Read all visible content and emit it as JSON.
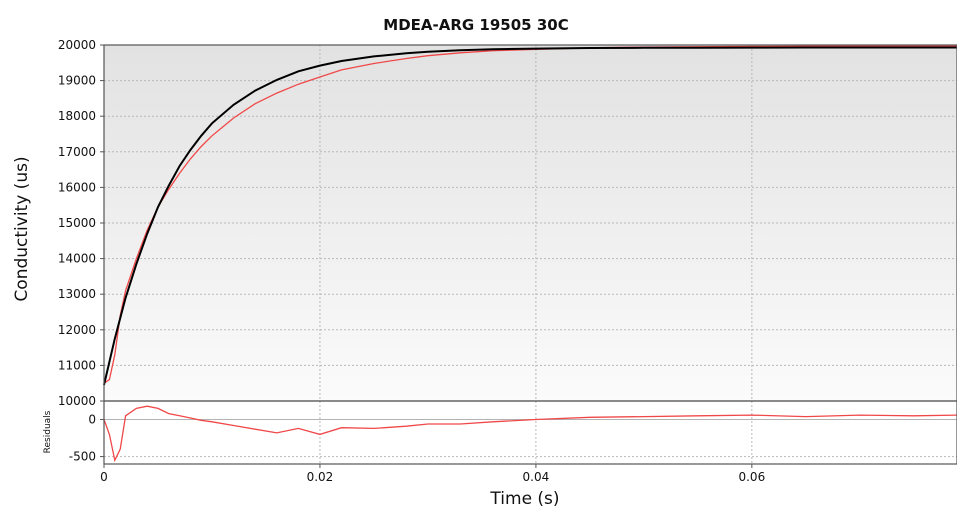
{
  "chart_data": {
    "type": "line",
    "title": "MDEA-ARG 19505 30C",
    "xlabel": "Time (s)",
    "ylabel": "Conductivity (us)",
    "residuals_label": "Residuals",
    "xlim": [
      0,
      0.079
    ],
    "ylim": [
      10000,
      20000
    ],
    "residuals_ylim": [
      -600,
      250
    ],
    "x_ticks": [
      0,
      0.02,
      0.04,
      0.06
    ],
    "x_tick_labels": [
      "0",
      "0.02",
      "0.04",
      "0.06"
    ],
    "y_ticks": [
      10000,
      11000,
      12000,
      13000,
      14000,
      15000,
      16000,
      17000,
      18000,
      19000,
      20000
    ],
    "y_tick_labels": [
      "10000",
      "11000",
      "12000",
      "13000",
      "14000",
      "15000",
      "16000",
      "17000",
      "18000",
      "19000",
      "20000"
    ],
    "residuals_ticks": [
      -500,
      0
    ],
    "residuals_tick_labels": [
      "-500",
      "0"
    ],
    "grid": true,
    "colors": {
      "data": "#f04848",
      "fit": "#000000"
    },
    "series": [
      {
        "role": "data",
        "x": [
          0,
          0.0005,
          0.001,
          0.0015,
          0.002,
          0.003,
          0.004,
          0.005,
          0.006,
          0.007,
          0.008,
          0.009,
          0.01,
          0.012,
          0.014,
          0.016,
          0.018,
          0.02,
          0.022,
          0.025,
          0.028,
          0.03,
          0.033,
          0.036,
          0.04,
          0.045,
          0.05,
          0.055,
          0.06,
          0.065,
          0.07,
          0.075,
          0.079
        ],
        "y": [
          10500,
          10600,
          11300,
          12400,
          13100,
          14000,
          14800,
          15450,
          15950,
          16400,
          16800,
          17150,
          17450,
          17950,
          18350,
          18650,
          18900,
          19100,
          19300,
          19480,
          19620,
          19700,
          19780,
          19840,
          19880,
          19920,
          19940,
          19950,
          19960,
          19965,
          19970,
          19975,
          19975
        ]
      },
      {
        "role": "fit",
        "x": [
          0,
          0.001,
          0.002,
          0.003,
          0.004,
          0.005,
          0.006,
          0.007,
          0.008,
          0.009,
          0.01,
          0.012,
          0.014,
          0.016,
          0.018,
          0.02,
          0.022,
          0.025,
          0.028,
          0.03,
          0.033,
          0.036,
          0.04,
          0.045,
          0.05,
          0.055,
          0.06,
          0.065,
          0.07,
          0.075,
          0.079
        ],
        "y": [
          10450,
          11750,
          12900,
          13850,
          14700,
          15450,
          16050,
          16600,
          17050,
          17450,
          17800,
          18320,
          18720,
          19020,
          19260,
          19420,
          19550,
          19680,
          19770,
          19810,
          19850,
          19880,
          19900,
          19915,
          19920,
          19925,
          19928,
          19930,
          19930,
          19930,
          19930
        ]
      },
      {
        "role": "residuals",
        "x": [
          0,
          0.0005,
          0.001,
          0.0015,
          0.002,
          0.003,
          0.004,
          0.005,
          0.006,
          0.007,
          0.008,
          0.009,
          0.01,
          0.012,
          0.014,
          0.016,
          0.018,
          0.02,
          0.022,
          0.025,
          0.028,
          0.03,
          0.033,
          0.036,
          0.04,
          0.045,
          0.05,
          0.055,
          0.06,
          0.065,
          0.07,
          0.075,
          0.079
        ],
        "y": [
          0,
          -200,
          -550,
          -400,
          50,
          150,
          180,
          150,
          80,
          50,
          20,
          -10,
          -30,
          -80,
          -130,
          -180,
          -120,
          -200,
          -110,
          -120,
          -90,
          -60,
          -60,
          -30,
          0,
          30,
          40,
          50,
          60,
          40,
          60,
          50,
          60
        ]
      }
    ]
  }
}
